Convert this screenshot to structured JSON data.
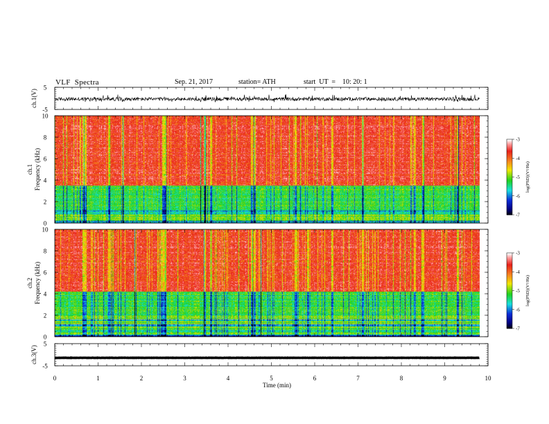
{
  "header": {
    "title": "VLF  Spectra",
    "date": "Sep. 21, 2017",
    "station": "station= ATH",
    "start": "start  UT  =    10: 20: 1"
  },
  "chart_data": [
    {
      "type": "line",
      "panel": "ch1-waveform",
      "ylabel": "ch.1(V)",
      "ylim": [
        -5,
        5
      ],
      "yticks": [
        "5",
        "-5"
      ],
      "xlim": [
        0,
        10
      ],
      "series": [
        {
          "values_range": [
            -1.8,
            1.2
          ],
          "baseline": -0.3,
          "color": "#000000"
        }
      ]
    },
    {
      "type": "heatmap",
      "panel": "ch1-spectrogram",
      "ylabel_top": "ch.1",
      "ylabel": "Frequency  (kHz)",
      "ylim": [
        0,
        10
      ],
      "yticks": [
        "0",
        "2",
        "4",
        "6",
        "8",
        "10"
      ],
      "xlim": [
        0,
        9.8
      ],
      "description_bands": [
        {
          "from_khz": 0,
          "to_khz": 1.2,
          "dominant": "mixed yellow/green/blue"
        },
        {
          "from_khz": 1.2,
          "to_khz": 3.5,
          "dominant": "green/cyan"
        },
        {
          "from_khz": 3.5,
          "to_khz": 10,
          "dominant": "red/yellow"
        }
      ],
      "colorbar": {
        "label": "log(PSD)(V²/Hz)",
        "ticks": [
          "-3",
          "-4",
          "-5",
          "-6",
          "-7"
        ],
        "range": [
          -7,
          -3
        ]
      }
    },
    {
      "type": "heatmap",
      "panel": "ch2-spectrogram",
      "ylabel_top": "ch.2",
      "ylabel": "Frequency  (kHz)",
      "ylim": [
        0,
        10
      ],
      "yticks": [
        "0",
        "2",
        "4",
        "6",
        "8",
        "10"
      ],
      "xlim": [
        0,
        9.8
      ],
      "description_bands": [
        {
          "from_khz": 0,
          "to_khz": 2.0,
          "dominant": "blue/cyan/green stripes"
        },
        {
          "from_khz": 2.0,
          "to_khz": 4.2,
          "dominant": "green/cyan"
        },
        {
          "from_khz": 4.2,
          "to_khz": 10,
          "dominant": "red/yellow"
        }
      ],
      "colorbar": {
        "label": "log(PSD)(V²/Hz)",
        "ticks": [
          "-3",
          "-4",
          "-5",
          "-6",
          "-7"
        ],
        "range": [
          -7,
          -3
        ]
      }
    },
    {
      "type": "line",
      "panel": "ch3-waveform",
      "ylabel": "ch.3(V)",
      "ylim": [
        -5,
        5
      ],
      "yticks": [
        "5",
        "-5"
      ],
      "xlim": [
        0,
        10
      ],
      "series": [
        {
          "values_range": [
            -1.5,
            -1.2
          ],
          "baseline": -1.4,
          "color": "#000000"
        }
      ]
    }
  ],
  "xaxis": {
    "label": "Time  (min)",
    "ticks": [
      "0",
      "1",
      "2",
      "3",
      "4",
      "5",
      "6",
      "7",
      "8",
      "9",
      "10"
    ],
    "range": [
      0,
      10
    ]
  },
  "palette": {
    "red": "#e8211a",
    "yellow": "#f2e600",
    "orange": "#f58220",
    "green": "#1fd21f",
    "cyan": "#18e0e0",
    "blue": "#0a2cd8",
    "navy": "#000080",
    "black": "#000000"
  }
}
